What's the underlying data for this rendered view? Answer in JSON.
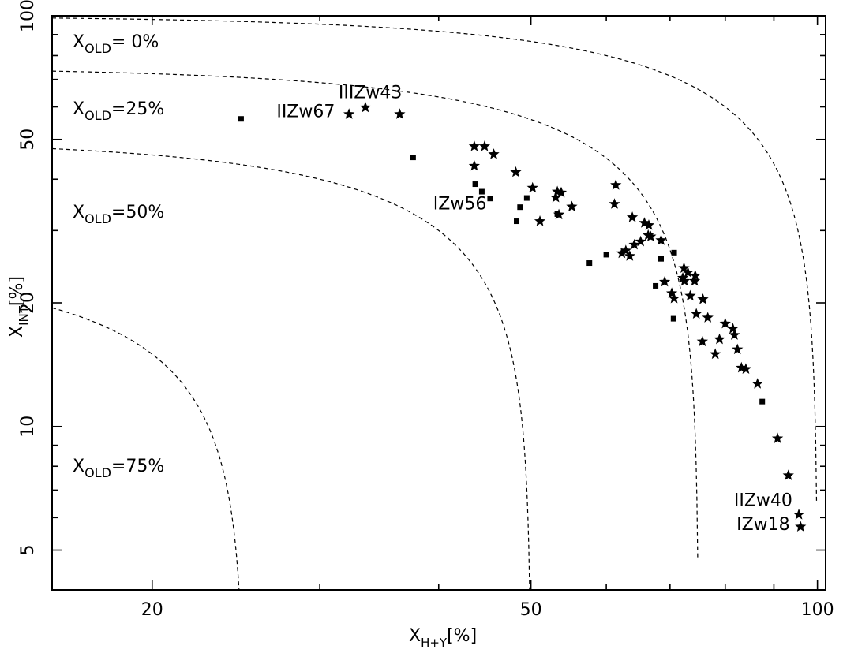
{
  "chart_data": {
    "type": "scatter",
    "title": "",
    "xlabel": {
      "main": "X",
      "sub": "H+Y",
      "suffix": "[%]"
    },
    "ylabel": {
      "main": "X",
      "sub": "INT",
      "suffix": "[%]"
    },
    "x_scale": "log",
    "y_scale": "log",
    "xlim": [
      15.7,
      102
    ],
    "ylim": [
      4,
      100
    ],
    "x_ticks": [
      20,
      50,
      100
    ],
    "y_ticks": [
      5,
      10,
      20,
      50,
      100
    ],
    "grid": false,
    "curves": [
      {
        "label_main": "X",
        "label_sub": "OLD",
        "label_suffix": "=  0%",
        "old_fraction": 0.0
      },
      {
        "label_main": "X",
        "label_sub": "OLD",
        "label_suffix": "=25%",
        "old_fraction": 0.25
      },
      {
        "label_main": "X",
        "label_sub": "OLD",
        "label_suffix": "=50%",
        "old_fraction": 0.5
      },
      {
        "label_main": "X",
        "label_sub": "OLD",
        "label_suffix": "=75%",
        "old_fraction": 0.75
      }
    ],
    "series": [
      {
        "marker": "star",
        "points": [
          [
            32.2,
            57.6
          ],
          [
            33.5,
            59.8
          ],
          [
            36.4,
            57.6
          ],
          [
            43.6,
            48.1
          ],
          [
            44.7,
            48.1
          ],
          [
            45.7,
            46.0
          ],
          [
            43.6,
            43.1
          ],
          [
            48.2,
            41.6
          ],
          [
            50.2,
            38.1
          ],
          [
            53.3,
            37.3
          ],
          [
            53.8,
            37.1
          ],
          [
            53.1,
            36.1
          ],
          [
            55.2,
            34.3
          ],
          [
            53.5,
            32.8
          ],
          [
            51.1,
            31.6
          ],
          [
            61.4,
            38.7
          ],
          [
            61.2,
            34.8
          ],
          [
            63.9,
            32.3
          ],
          [
            65.8,
            31.3
          ],
          [
            66.5,
            30.9
          ],
          [
            66.4,
            29.2
          ],
          [
            66.8,
            29.0
          ],
          [
            65.2,
            28.2
          ],
          [
            64.2,
            27.7
          ],
          [
            68.5,
            28.4
          ],
          [
            62.9,
            26.8
          ],
          [
            62.3,
            26.4
          ],
          [
            63.5,
            26.0
          ],
          [
            72.4,
            24.3
          ],
          [
            73.1,
            23.7
          ],
          [
            72.2,
            23.0
          ],
          [
            74.4,
            23.3
          ],
          [
            74.3,
            22.6
          ],
          [
            69.1,
            22.5
          ],
          [
            72.5,
            22.6
          ],
          [
            70.3,
            21.1
          ],
          [
            70.7,
            20.5
          ],
          [
            73.5,
            20.8
          ],
          [
            75.8,
            20.4
          ],
          [
            74.6,
            18.8
          ],
          [
            76.7,
            18.4
          ],
          [
            80.0,
            17.8
          ],
          [
            81.5,
            17.3
          ],
          [
            81.8,
            16.7
          ],
          [
            78.9,
            16.3
          ],
          [
            75.7,
            16.1
          ],
          [
            82.4,
            15.4
          ],
          [
            78.1,
            15.0
          ],
          [
            83.2,
            13.9
          ],
          [
            84.1,
            13.8
          ],
          [
            86.5,
            12.7
          ],
          [
            90.8,
            9.35
          ],
          [
            93.2,
            7.6
          ],
          [
            95.6,
            6.1
          ],
          [
            96.0,
            5.7
          ]
        ]
      },
      {
        "marker": "square",
        "points": [
          [
            24.8,
            56.1
          ],
          [
            37.6,
            45.2
          ],
          [
            43.7,
            38.9
          ],
          [
            44.4,
            37.3
          ],
          [
            45.3,
            35.9
          ],
          [
            49.5,
            36.0
          ],
          [
            48.7,
            34.2
          ],
          [
            53.3,
            32.9
          ],
          [
            48.3,
            31.6
          ],
          [
            57.6,
            25.0
          ],
          [
            60.0,
            26.2
          ],
          [
            68.5,
            25.6
          ],
          [
            67.6,
            22.0
          ],
          [
            70.7,
            26.5
          ],
          [
            70.6,
            18.3
          ],
          [
            87.5,
            11.5
          ]
        ]
      }
    ],
    "annotations": [
      {
        "text": "IIIZw43",
        "x": 33.9,
        "y": 63.0
      },
      {
        "text": "IIZw67",
        "x": 29.0,
        "y": 56.7
      },
      {
        "text": "IZw56",
        "x": 42.1,
        "y": 33.8
      },
      {
        "text": "IIZw40",
        "x": 87.7,
        "y": 6.4
      },
      {
        "text": "IZw18",
        "x": 87.7,
        "y": 5.6
      }
    ]
  }
}
